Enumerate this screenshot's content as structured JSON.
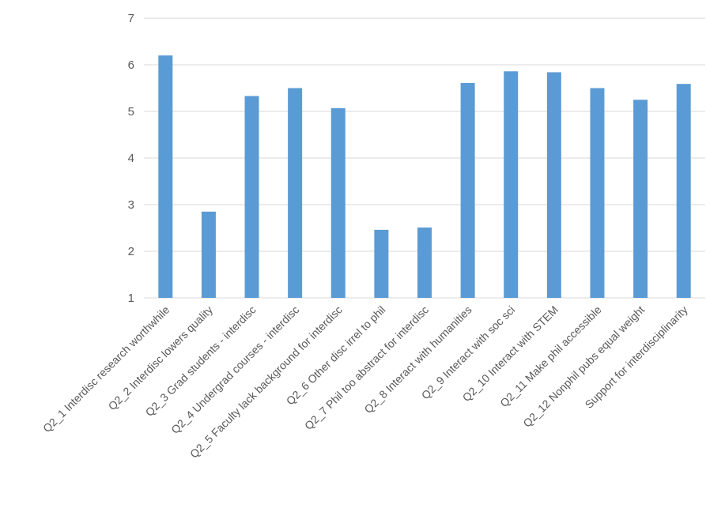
{
  "chart_data": {
    "type": "bar",
    "title": "",
    "xlabel": "",
    "ylabel": "",
    "ylim": [
      1,
      7
    ],
    "yticks": [
      1,
      2,
      3,
      4,
      5,
      6,
      7
    ],
    "grid": true,
    "legend": "none",
    "bar_color": "#5b9bd5",
    "categories": [
      "Q2_1 Interdisc research worthwhile",
      "Q2_2 Interdisc lowers quality",
      "Q2_3 Grad students - interdisc",
      "Q2_4 Undergrad courses - interdisc",
      "Q2_5 Faculty lack background for interdisc",
      "Q2_6 Other disc irrel to phil",
      "Q2_7 Phil too abstract for interdisc",
      "Q2_8 Interact with humanities",
      "Q2_9 Interact with soc sci",
      "Q2_10 Interact with STEM",
      "Q2_11 Make phil accessible",
      "Q2_12 Nonphil pubs equal weight",
      "Support for interdisciplinarity"
    ],
    "values": [
      6.2,
      2.85,
      5.33,
      5.5,
      5.07,
      2.46,
      2.51,
      5.61,
      5.86,
      5.84,
      5.5,
      5.25,
      5.59
    ]
  }
}
